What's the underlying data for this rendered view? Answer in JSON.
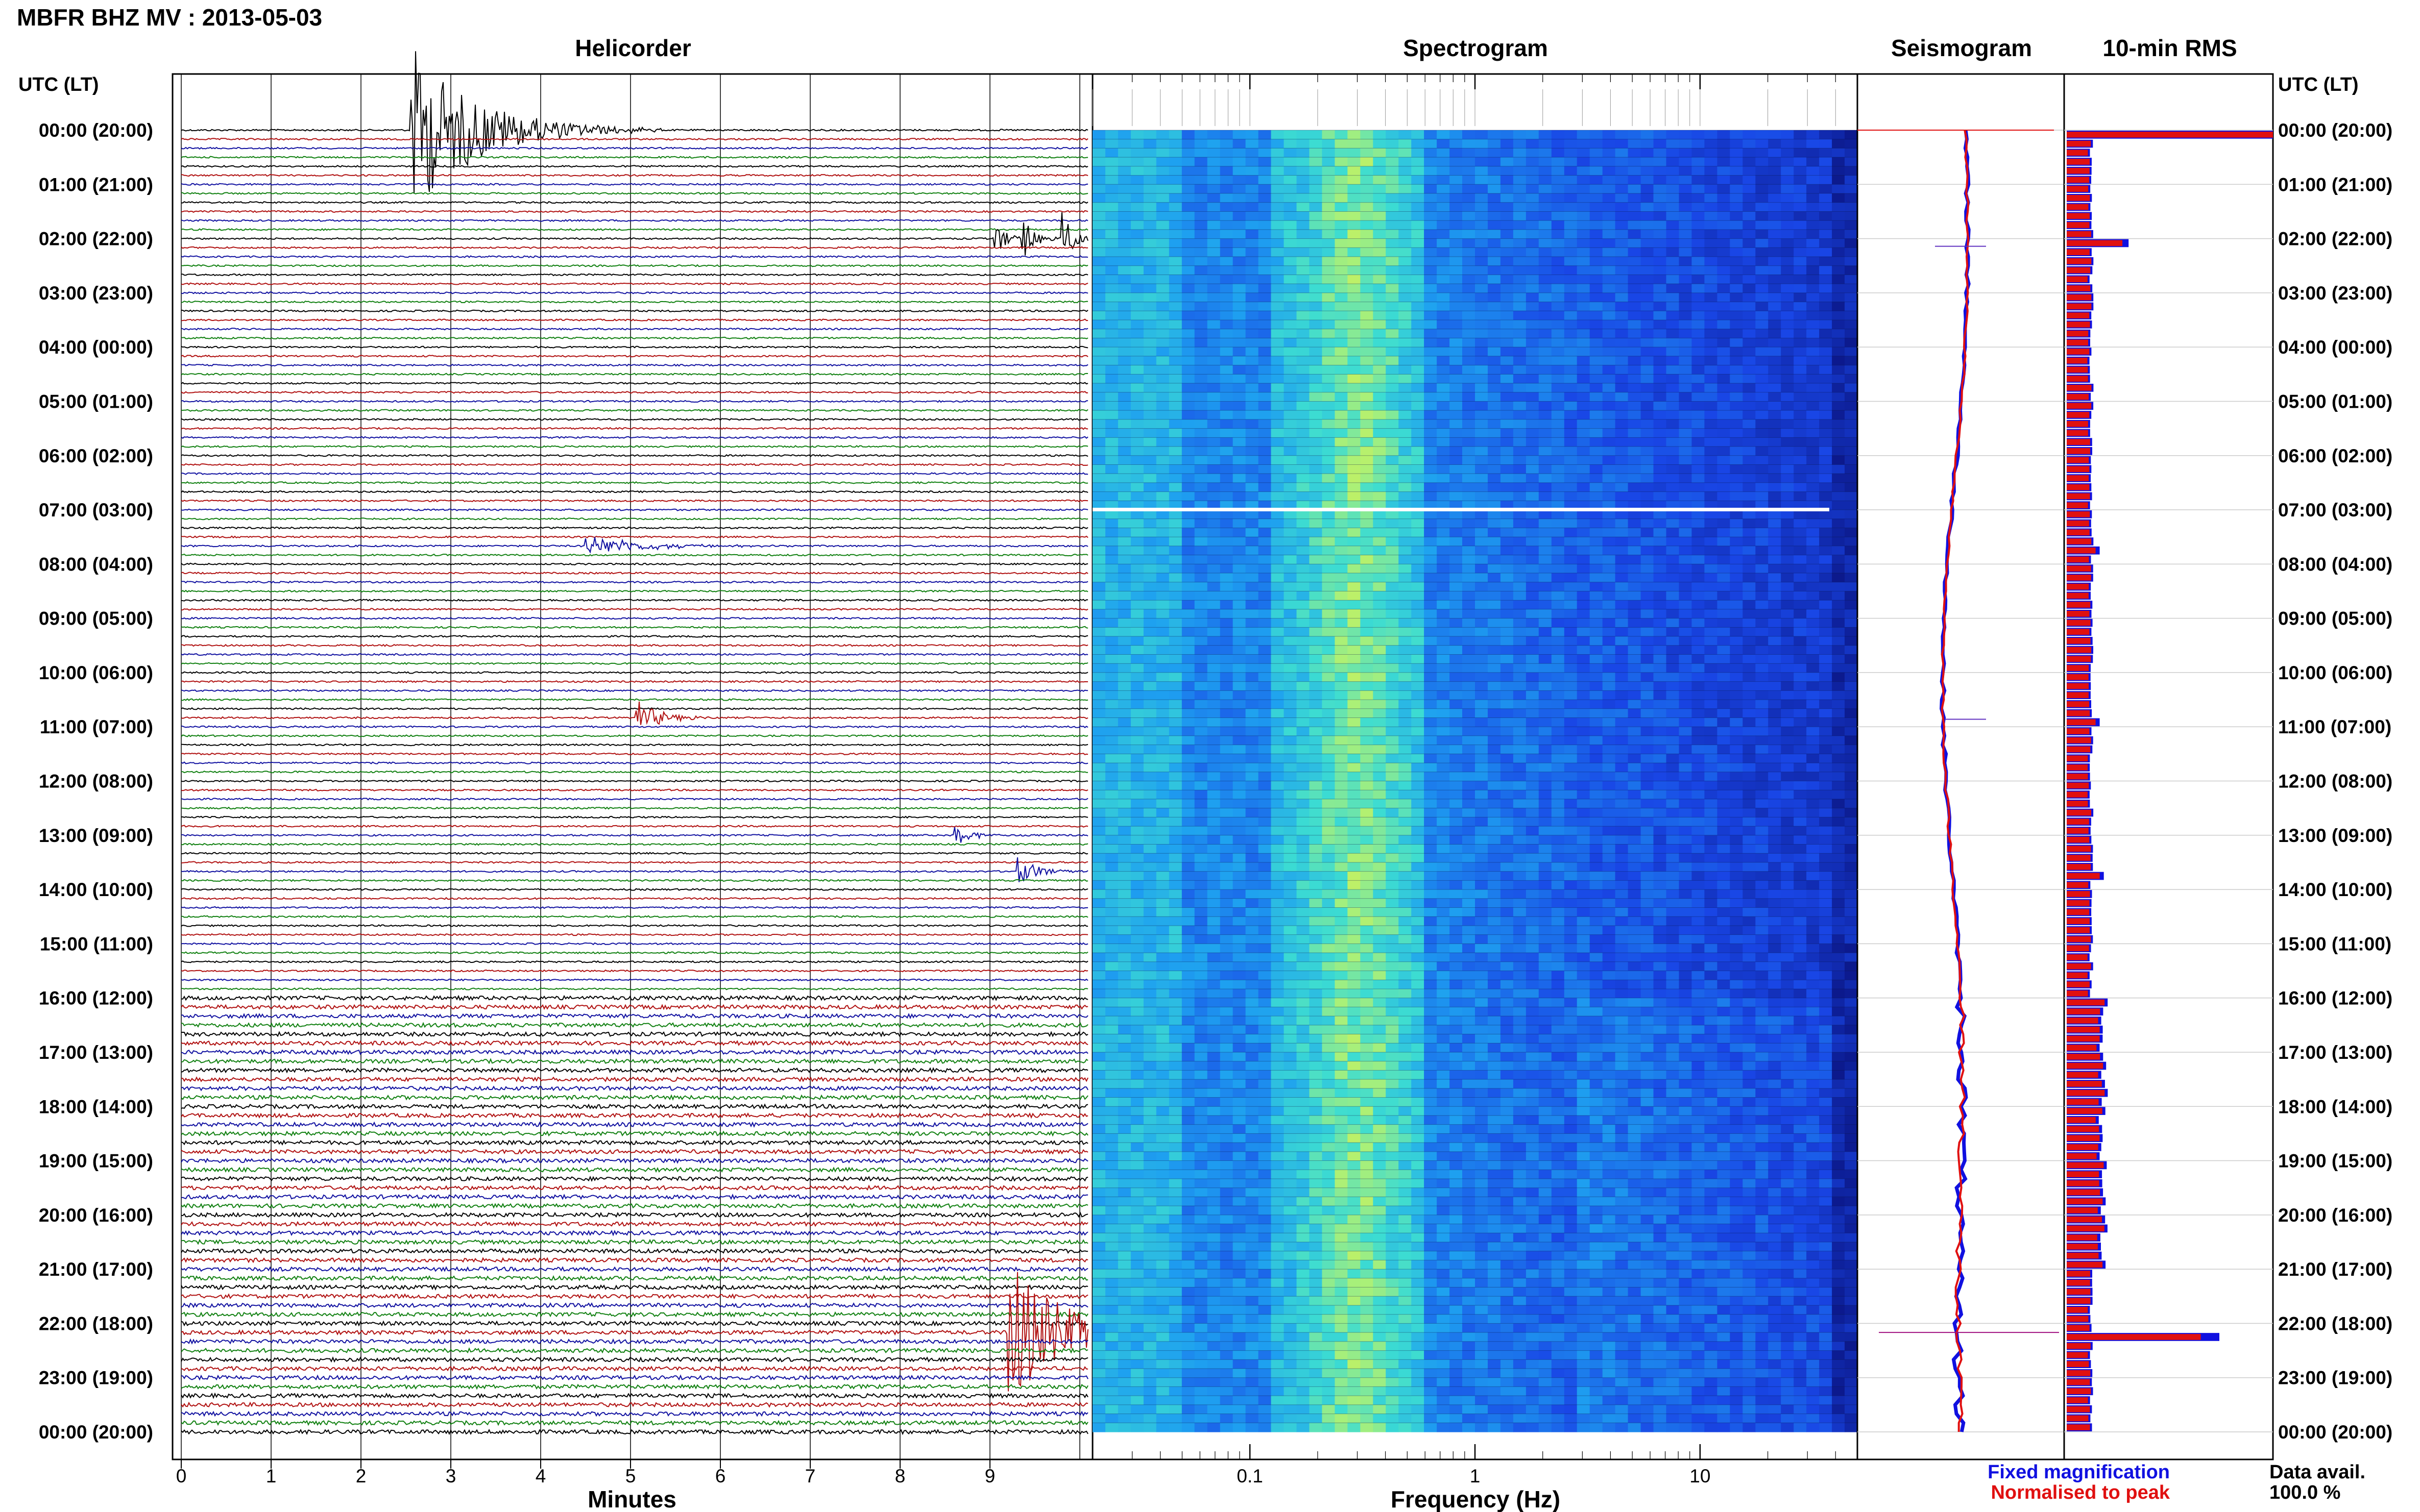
{
  "header": {
    "station_title": "MBFR BHZ MV : 2013-05-03"
  },
  "panels": {
    "helicorder": "Helicorder",
    "spectrogram": "Spectrogram",
    "seismogram": "Seismogram",
    "rms": "10-min RMS"
  },
  "axis_titles": {
    "left_time": "UTC (LT)",
    "right_time": "UTC (LT)",
    "minutes": "Minutes",
    "frequency": "Frequency (Hz)"
  },
  "legend": {
    "fixed": "Fixed magnification",
    "normalised": "Normalised to peak",
    "fixed_color": "#1010e0",
    "normalised_color": "#e01010"
  },
  "data_avail": {
    "label": "Data avail.",
    "value": "100.0 %"
  },
  "colors": {
    "trace_cycle": [
      "#000000",
      "#b01010",
      "#1010a0",
      "#108010"
    ],
    "rms_fixed": "#1010e0",
    "rms_normalised": "#e01010"
  },
  "chart_data": [
    {
      "type": "line",
      "title": "Helicorder",
      "xlabel": "Minutes",
      "xticks": [
        "0",
        "1",
        "2",
        "3",
        "4",
        "5",
        "6",
        "7",
        "8",
        "9"
      ],
      "xlim": [
        0,
        10
      ],
      "time_labels": [
        "00:00 (20:00)",
        "01:00 (21:00)",
        "02:00 (22:00)",
        "03:00 (23:00)",
        "04:00 (00:00)",
        "05:00 (01:00)",
        "06:00 (02:00)",
        "07:00 (03:00)",
        "08:00 (04:00)",
        "09:00 (05:00)",
        "10:00 (06:00)",
        "11:00 (07:00)",
        "12:00 (08:00)",
        "13:00 (09:00)",
        "14:00 (10:00)",
        "15:00 (11:00)",
        "16:00 (12:00)",
        "17:00 (13:00)",
        "18:00 (14:00)",
        "19:00 (15:00)",
        "20:00 (16:00)",
        "21:00 (17:00)",
        "22:00 (18:00)",
        "23:00 (19:00)",
        "00:00 (20:00)"
      ],
      "rows_per_hour": 6,
      "events": [
        {
          "row": 0,
          "minute": 2.55,
          "amplitude": 1.6,
          "decay_min": 0.7
        },
        {
          "row": 12,
          "minute": 9.05,
          "amplitude": 0.35,
          "decay_min": 0.12
        },
        {
          "row": 12,
          "minute": 9.35,
          "amplitude": 0.45,
          "decay_min": 0.12
        },
        {
          "row": 12,
          "minute": 9.8,
          "amplitude": 0.55,
          "decay_min": 0.12
        },
        {
          "row": 46,
          "minute": 4.5,
          "amplitude": 0.2,
          "decay_min": 0.6
        },
        {
          "row": 65,
          "minute": 5.05,
          "amplitude": 0.35,
          "decay_min": 0.25
        },
        {
          "row": 78,
          "minute": 8.6,
          "amplitude": 0.3,
          "decay_min": 0.15
        },
        {
          "row": 82,
          "minute": 9.3,
          "amplitude": 0.3,
          "decay_min": 0.2
        },
        {
          "row": 133,
          "minute": 9.2,
          "amplitude": 1.4,
          "decay_min": 0.6
        }
      ]
    },
    {
      "type": "heatmap",
      "title": "Spectrogram",
      "xlabel": "Frequency (Hz)",
      "xscale": "log",
      "xlim": [
        0.02,
        50
      ],
      "xticks": [
        "0.1",
        "1",
        "10"
      ]
    },
    {
      "type": "line",
      "title": "Seismogram",
      "series": [
        {
          "name": "Fixed magnification",
          "color": "#1010e0"
        },
        {
          "name": "Normalised to peak",
          "color": "#e01010"
        }
      ]
    },
    {
      "type": "bar",
      "title": "10-min RMS",
      "rows": 144,
      "series": [
        {
          "name": "Fixed magnification",
          "color": "#1010e0"
        },
        {
          "name": "Normalised to peak",
          "color": "#e01010"
        }
      ],
      "baseline": 0.11,
      "peaks": [
        {
          "row": 0,
          "fixed": 1.0,
          "normalised": 1.0
        },
        {
          "row": 12,
          "fixed": 0.3,
          "normalised": 0.27
        },
        {
          "row": 46,
          "fixed": 0.16,
          "normalised": 0.14
        },
        {
          "row": 65,
          "fixed": 0.16,
          "normalised": 0.14
        },
        {
          "row": 82,
          "fixed": 0.18,
          "normalised": 0.16
        },
        {
          "row": 133,
          "fixed": 0.74,
          "normalised": 0.65
        }
      ],
      "high_rows": [
        96,
        125
      ]
    }
  ]
}
